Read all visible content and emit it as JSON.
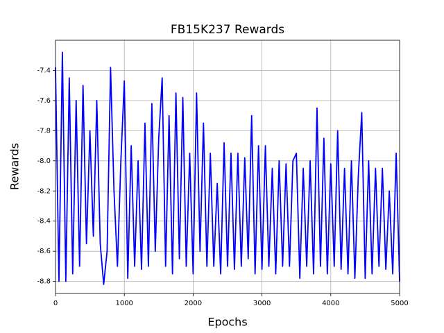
{
  "chart_data": {
    "type": "line",
    "title": "FB15K237 Rewards",
    "x_label": "Epochs",
    "y_label": "Rewards",
    "color": "#0000ff",
    "grid": true,
    "xlim": [
      0,
      5000
    ],
    "xticks": [
      0,
      1000,
      2000,
      3000,
      4000,
      5000
    ],
    "ylim": [
      -8.88,
      -7.2
    ],
    "yticks": [
      -8.8,
      -8.6,
      -8.4,
      -8.2,
      {
        "value": -8,
        "label": "-8.0"
      },
      -7.8,
      -7.6,
      -7.4
    ],
    "x": [
      0,
      50,
      100,
      150,
      200,
      250,
      300,
      350,
      400,
      450,
      500,
      550,
      600,
      650,
      700,
      750,
      800,
      850,
      900,
      950,
      1000,
      1050,
      1100,
      1150,
      1200,
      1250,
      1300,
      1350,
      1400,
      1450,
      1500,
      1550,
      1600,
      1650,
      1700,
      1750,
      1800,
      1850,
      1900,
      1950,
      2000,
      2050,
      2100,
      2150,
      2200,
      2250,
      2300,
      2350,
      2400,
      2450,
      2500,
      2550,
      2600,
      2650,
      2700,
      2750,
      2800,
      2850,
      2900,
      2950,
      3000,
      3050,
      3100,
      3150,
      3200,
      3250,
      3300,
      3350,
      3400,
      3450,
      3500,
      3550,
      3600,
      3650,
      3700,
      3750,
      3800,
      3850,
      3900,
      3950,
      4000,
      4050,
      4100,
      4150,
      4200,
      4250,
      4300,
      4350,
      4400,
      4450,
      4500,
      4550,
      4600,
      4650,
      4700,
      4750,
      4800,
      4850,
      4900,
      4950,
      5000
    ],
    "values": [
      -7.38,
      -8.8,
      -7.28,
      -8.8,
      -7.45,
      -8.75,
      -7.6,
      -8.7,
      -7.5,
      -8.55,
      -7.8,
      -8.5,
      -7.6,
      -8.55,
      -8.82,
      -8.6,
      -7.38,
      -8.2,
      -8.7,
      -8.0,
      -7.47,
      -8.78,
      -7.9,
      -8.7,
      -8.0,
      -8.72,
      -7.75,
      -8.7,
      -7.62,
      -8.6,
      -7.85,
      -7.45,
      -8.7,
      -7.7,
      -8.75,
      -7.55,
      -8.65,
      -7.58,
      -8.7,
      -7.95,
      -8.75,
      -7.55,
      -8.6,
      -7.75,
      -8.7,
      -7.95,
      -8.7,
      -8.15,
      -8.75,
      -7.88,
      -8.7,
      -7.95,
      -8.72,
      -7.95,
      -8.7,
      -7.98,
      -8.65,
      -7.7,
      -8.75,
      -7.9,
      -8.72,
      -7.9,
      -8.7,
      -8.05,
      -8.75,
      -8.0,
      -8.7,
      -8.02,
      -8.7,
      -8.0,
      -7.95,
      -8.78,
      -8.05,
      -8.7,
      -8.0,
      -8.75,
      -7.65,
      -8.7,
      -7.85,
      -8.75,
      -8.02,
      -8.7,
      -7.8,
      -8.72,
      -8.05,
      -8.75,
      -8.0,
      -8.78,
      -8.1,
      -7.68,
      -8.78,
      -8.0,
      -8.75,
      -8.05,
      -8.7,
      -8.05,
      -8.72,
      -8.2,
      -8.75,
      -7.95,
      -8.8
    ]
  }
}
